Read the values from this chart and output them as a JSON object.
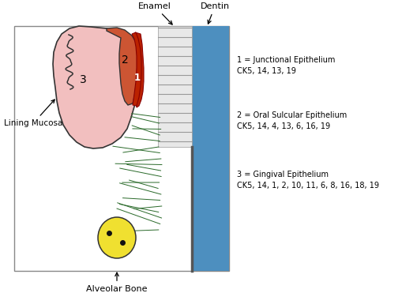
{
  "background": "#ffffff",
  "colors": {
    "gingival_light": "#f2bfbf",
    "oral_sulcular": "#cc5533",
    "junctional": "#bb2200",
    "enamel_bg": "#e8e8e8",
    "enamel_line": "#999999",
    "dentin": "#4d8fbf",
    "bone_bg": "#f0ece0",
    "bone_line": "#ccbb99",
    "nerve": "#2a6a2a",
    "yellow": "#f0e030",
    "outline": "#333333",
    "tooth_wall": "#555555",
    "box_edge": "#888888"
  },
  "legend": [
    [
      "1 = Junctional Epithelium",
      "CK5, 14, 13, 19"
    ],
    [
      "2 = Oral Sulcular Epithelium",
      "CK5, 14, 4, 13, 6, 16, 19"
    ],
    [
      "3 = Gingival Epithelium",
      "CK5, 14, 1, 2, 10, 11, 6, 8, 16, 18, 19"
    ]
  ]
}
